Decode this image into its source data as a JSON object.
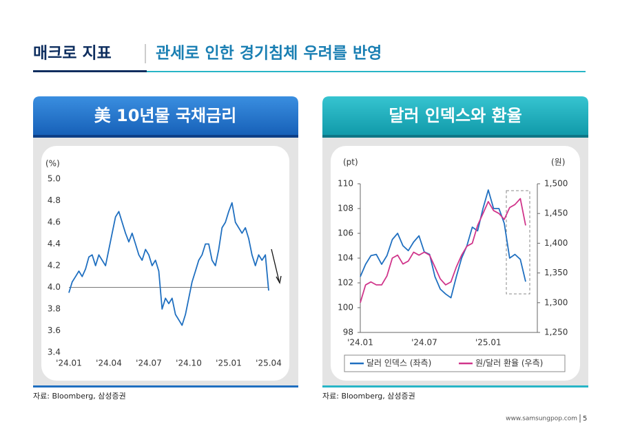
{
  "header": {
    "title": "매크로 지표",
    "subtitle": "관세로 인한 경기침체 우려를 반영"
  },
  "footer": {
    "url": "www.samsungpop.com",
    "page": "5"
  },
  "chart_data": [
    {
      "type": "line",
      "title": "美 10년물 국채금리",
      "y_label": "(%)",
      "source": "자료: Bloomberg, 삼성증권",
      "categories": [
        "'24.01",
        null,
        null,
        null,
        null,
        null,
        null,
        null,
        null,
        null,
        null,
        null,
        "'24.04",
        null,
        null,
        null,
        null,
        null,
        null,
        null,
        null,
        null,
        null,
        null,
        "'24.07",
        null,
        null,
        null,
        null,
        null,
        null,
        null,
        null,
        null,
        null,
        null,
        "'24.10",
        null,
        null,
        null,
        null,
        null,
        null,
        null,
        null,
        null,
        null,
        null,
        "'25.01",
        null,
        null,
        null,
        null,
        null,
        null,
        null,
        null,
        null,
        null,
        null,
        "'25.04"
      ],
      "series": [
        {
          "name": "美 10년물 국채금리",
          "color": "#1f6fc0",
          "values": [
            3.95,
            4.05,
            4.1,
            4.15,
            4.1,
            4.17,
            4.28,
            4.3,
            4.2,
            4.3,
            4.25,
            4.2,
            4.35,
            4.5,
            4.65,
            4.7,
            4.6,
            4.5,
            4.42,
            4.5,
            4.4,
            4.3,
            4.25,
            4.35,
            4.3,
            4.2,
            4.25,
            4.15,
            3.8,
            3.9,
            3.85,
            3.9,
            3.75,
            3.7,
            3.65,
            3.75,
            3.9,
            4.05,
            4.15,
            4.25,
            4.3,
            4.4,
            4.4,
            4.25,
            4.2,
            4.35,
            4.55,
            4.6,
            4.7,
            4.78,
            4.6,
            4.55,
            4.5,
            4.55,
            4.45,
            4.3,
            4.2,
            4.3,
            4.25,
            4.3,
            3.97
          ]
        }
      ],
      "ylim": [
        3.4,
        5.0
      ],
      "yticks": [
        3.4,
        3.6,
        3.8,
        {
          "value": 4.0,
          "label": "4.0"
        },
        4.2,
        4.4,
        4.6,
        4.8,
        {
          "value": 5.0,
          "label": "5.0"
        }
      ],
      "reference_line": 4.0,
      "legend": false
    },
    {
      "type": "line",
      "title": "달러 인덱스와 환율",
      "y_label": "(pt)",
      "y2_label": "(원)",
      "source": "자료: Bloomberg, 삼성증권",
      "categories": [
        "'24.01",
        null,
        null,
        null,
        null,
        null,
        null,
        null,
        null,
        null,
        null,
        null,
        "'24.07",
        null,
        null,
        null,
        null,
        null,
        null,
        null,
        null,
        null,
        null,
        null,
        "'25.01",
        null,
        null,
        null,
        null,
        null,
        null,
        null
      ],
      "series": [
        {
          "name": "달러 인덱스 (좌측)",
          "color": "#1f6fc0",
          "axis": "y",
          "values": [
            102.5,
            103.5,
            104.2,
            104.3,
            103.5,
            104.2,
            105.5,
            106,
            105,
            104.6,
            105.3,
            105.8,
            104.5,
            104.3,
            102.5,
            101.5,
            101.1,
            100.8,
            102.5,
            104,
            105,
            106.5,
            106.2,
            108,
            109.5,
            108,
            108,
            106.8,
            104,
            104.3,
            103.9,
            102.1
          ]
        },
        {
          "name": "원/달러 환율 (우측)",
          "color": "#d0348a",
          "axis": "y2",
          "values": [
            1300,
            1330,
            1335,
            1330,
            1330,
            1345,
            1375,
            1380,
            1365,
            1370,
            1385,
            1380,
            1385,
            1380,
            1360,
            1340,
            1330,
            1335,
            1360,
            1380,
            1395,
            1400,
            1430,
            1450,
            1470,
            1455,
            1450,
            1440,
            1460,
            1465,
            1475,
            1430
          ]
        }
      ],
      "ylim": [
        98,
        110
      ],
      "yticks": [
        98,
        100,
        102,
        104,
        106,
        108,
        110
      ],
      "y2lim": [
        1250,
        1500
      ],
      "y2ticks": [
        {
          "value": 1250,
          "label": "1,250"
        },
        {
          "value": 1300,
          "label": "1,300"
        },
        {
          "value": 1350,
          "label": "1,350"
        },
        {
          "value": 1400,
          "label": "1,400"
        },
        {
          "value": 1450,
          "label": "1,450"
        },
        {
          "value": 1500,
          "label": "1,500"
        }
      ],
      "legend": "bottom"
    }
  ]
}
